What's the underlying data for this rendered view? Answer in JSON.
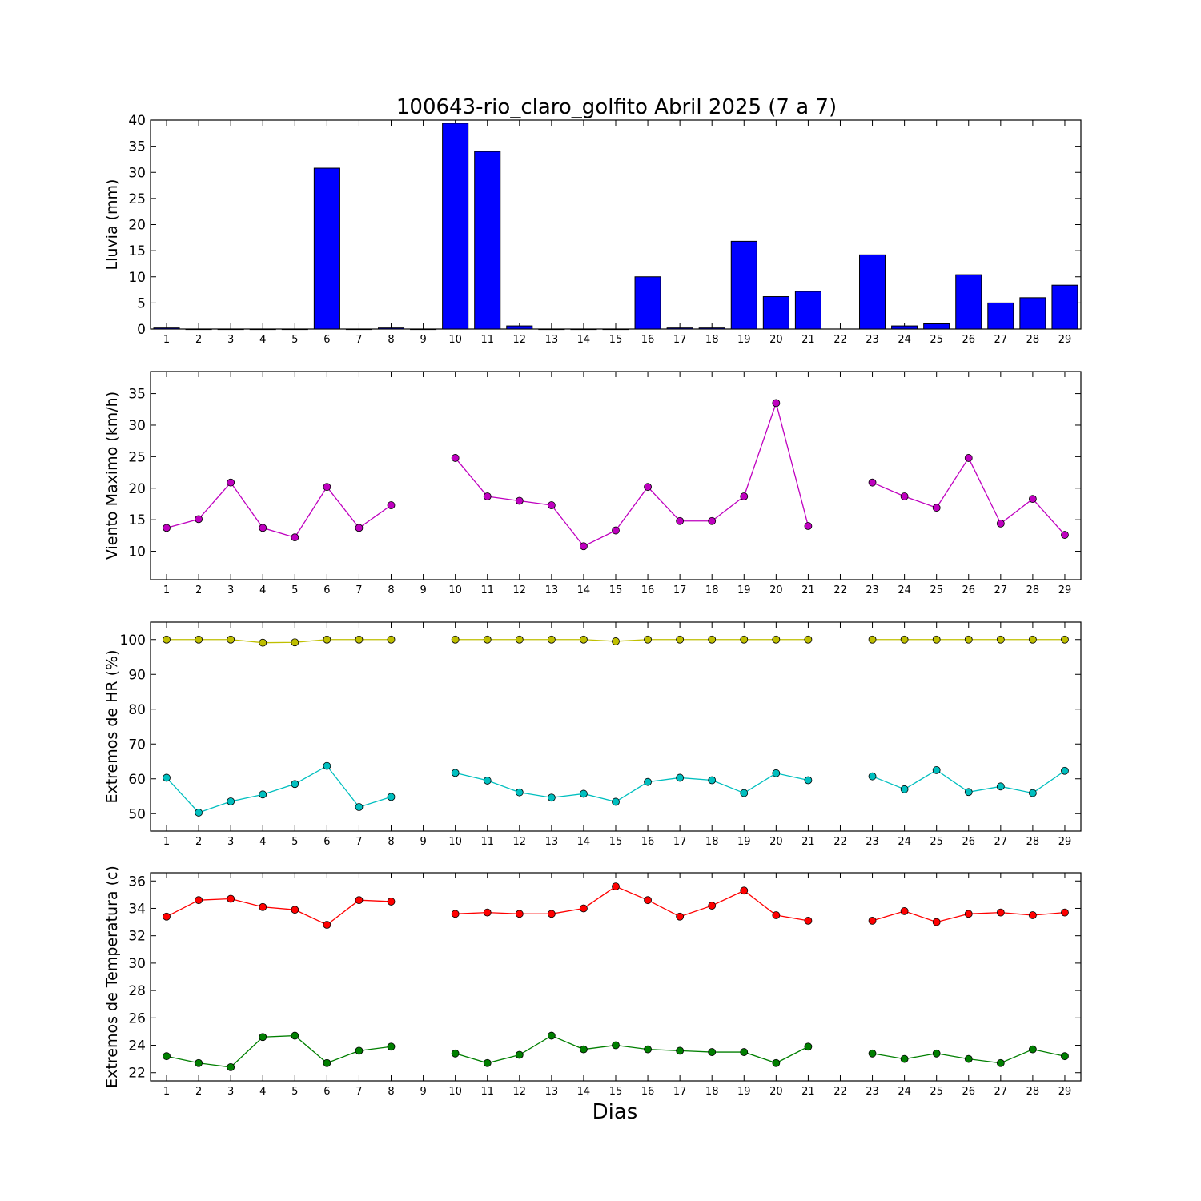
{
  "chart_data": [
    {
      "type": "bar",
      "title": "100643-rio_claro_golfito Abril 2025  (7 a 7)",
      "ylabel": "Lluvia (mm)",
      "xlabel": "",
      "categories": [
        "1",
        "2",
        "3",
        "4",
        "5",
        "6",
        "7",
        "8",
        "9",
        "10",
        "11",
        "12",
        "13",
        "14",
        "15",
        "16",
        "17",
        "18",
        "19",
        "20",
        "21",
        "22",
        "23",
        "24",
        "25",
        "26",
        "27",
        "28",
        "29"
      ],
      "values": [
        0.2,
        0,
        0,
        0,
        0,
        30.8,
        0,
        0.2,
        0,
        39.4,
        34.0,
        0.6,
        0,
        0,
        0,
        10.0,
        0.2,
        0.2,
        16.8,
        6.2,
        7.2,
        null,
        14.2,
        0.6,
        1.0,
        10.4,
        5.0,
        6.0,
        8.4
      ],
      "ylim": [
        0,
        40
      ],
      "yticks": [
        0,
        5,
        10,
        15,
        20,
        25,
        30,
        35,
        40
      ],
      "color": "#0000ff"
    },
    {
      "type": "line",
      "ylabel": "Viento Maximo (km/h)",
      "categories": [
        "1",
        "2",
        "3",
        "4",
        "5",
        "6",
        "7",
        "8",
        "9",
        "10",
        "11",
        "12",
        "13",
        "14",
        "15",
        "16",
        "17",
        "18",
        "19",
        "20",
        "21",
        "22",
        "23",
        "24",
        "25",
        "26",
        "27",
        "28",
        "29"
      ],
      "series": [
        {
          "color": "#bf00bf",
          "values": [
            13.7,
            15.1,
            20.9,
            13.7,
            12.2,
            20.2,
            13.7,
            17.3,
            null,
            24.8,
            18.7,
            18.0,
            17.3,
            10.8,
            13.3,
            20.2,
            14.8,
            14.8,
            18.7,
            33.5,
            14.0,
            null,
            20.9,
            18.7,
            16.9,
            24.8,
            14.4,
            18.3,
            12.6
          ]
        }
      ],
      "ylim": [
        5.5,
        38.5
      ],
      "yticks": [
        10,
        15,
        20,
        25,
        30,
        35
      ]
    },
    {
      "type": "line",
      "ylabel": "Extremos de HR (%)",
      "categories": [
        "1",
        "2",
        "3",
        "4",
        "5",
        "6",
        "7",
        "8",
        "9",
        "10",
        "11",
        "12",
        "13",
        "14",
        "15",
        "16",
        "17",
        "18",
        "19",
        "20",
        "21",
        "22",
        "23",
        "24",
        "25",
        "26",
        "27",
        "28",
        "29"
      ],
      "series": [
        {
          "color": "#bfbf00",
          "values": [
            100,
            100,
            100,
            99.1,
            99.2,
            100,
            100,
            100,
            null,
            100,
            100,
            100,
            100,
            100,
            99.5,
            100,
            100,
            100,
            100,
            100,
            100,
            null,
            100,
            100,
            100,
            100,
            100,
            100,
            100
          ]
        },
        {
          "color": "#00bfbf",
          "values": [
            60.3,
            50.3,
            53.5,
            55.5,
            58.5,
            63.7,
            51.9,
            54.8,
            null,
            61.7,
            59.5,
            56.1,
            54.6,
            55.7,
            53.4,
            59.1,
            60.3,
            59.6,
            55.9,
            61.6,
            59.6,
            null,
            60.7,
            57.0,
            62.5,
            56.2,
            57.8,
            55.9,
            62.3
          ]
        }
      ],
      "ylim": [
        45,
        105
      ],
      "yticks": [
        50,
        60,
        70,
        80,
        90,
        100
      ]
    },
    {
      "type": "line",
      "ylabel": "Extremos de Temperatura (c)",
      "xlabel": "Dias",
      "categories": [
        "1",
        "2",
        "3",
        "4",
        "5",
        "6",
        "7",
        "8",
        "9",
        "10",
        "11",
        "12",
        "13",
        "14",
        "15",
        "16",
        "17",
        "18",
        "19",
        "20",
        "21",
        "22",
        "23",
        "24",
        "25",
        "26",
        "27",
        "28",
        "29"
      ],
      "series": [
        {
          "color": "#ff0000",
          "values": [
            33.4,
            34.6,
            34.7,
            34.1,
            33.9,
            32.8,
            34.6,
            34.5,
            null,
            33.6,
            33.7,
            33.6,
            33.6,
            34.0,
            35.6,
            34.6,
            33.4,
            34.2,
            35.3,
            33.5,
            33.1,
            null,
            33.1,
            33.8,
            33.0,
            33.6,
            33.7,
            33.5,
            33.7
          ]
        },
        {
          "color": "#007f00",
          "values": [
            23.2,
            22.7,
            22.4,
            24.6,
            24.7,
            22.7,
            23.6,
            23.9,
            null,
            23.4,
            22.7,
            23.3,
            24.7,
            23.7,
            24.0,
            23.7,
            23.6,
            23.5,
            23.5,
            22.7,
            23.9,
            null,
            23.4,
            23.0,
            23.4,
            23.0,
            22.7,
            23.7,
            23.2
          ]
        }
      ],
      "ylim": [
        21.4,
        36.6
      ],
      "yticks": [
        22,
        24,
        26,
        28,
        30,
        32,
        34,
        36
      ]
    }
  ]
}
